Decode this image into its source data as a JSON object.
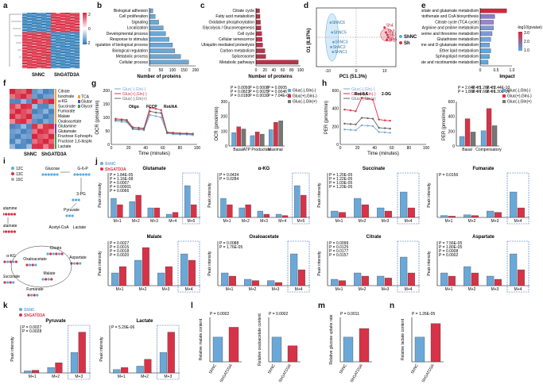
{
  "panels": [
    "a",
    "b",
    "c",
    "d",
    "e",
    "f",
    "g",
    "h",
    "i",
    "j",
    "k",
    "l",
    "m",
    "n"
  ],
  "colors": {
    "shnc": "#5aaee0",
    "shgatd3a": "#d63348",
    "gray": "#6e6e6e",
    "bar_blue": "#6aa8d8",
    "bar_red": "#b7334a"
  },
  "heatmap_a": {
    "groups": [
      "ShNC",
      "ShGATD3A"
    ],
    "scale_max": "2",
    "scale_mid": "0",
    "scale_min": "-2"
  },
  "chart_b": {
    "type": "bar",
    "xlabel": "Number of proteins",
    "ticks": [
      "0",
      "50",
      "100",
      "150",
      "200"
    ],
    "categories": [
      "Biological adhesion",
      "Cell proliferation",
      "Signaling",
      "Localization",
      "Developmental process",
      "Response to stimulus",
      "Regulation of biological process",
      "Biological regulation",
      "Metabolic process",
      "Cellular process"
    ],
    "values": [
      15,
      25,
      40,
      60,
      70,
      85,
      100,
      110,
      135,
      170
    ],
    "xlim": [
      0,
      200
    ]
  },
  "chart_c": {
    "type": "bar",
    "xlabel": "Number of proteins",
    "ticks": [
      "0",
      "20",
      "40",
      "60",
      "80",
      "100"
    ],
    "categories": [
      "Citrate cycle",
      "Fatty acid metabolism",
      "Oxidative phosphorylation",
      "Glycolysis / Gluconeogenesis",
      "Cell cycle",
      "Cellular senescence",
      "Ubiquitin mediated proteolysis",
      "Carbon metabolism",
      "Spliceosome",
      "Metabolic pathways"
    ],
    "values": [
      8,
      9,
      10,
      11,
      13,
      14,
      15,
      20,
      22,
      95
    ],
    "xlim": [
      0,
      100
    ]
  },
  "chart_d": {
    "type": "scatter",
    "xlabel": "PC1 (51.3%)",
    "ylabel": "O1 (8.97%)",
    "legend": [
      "ShNC",
      "Sh"
    ],
    "xticks": [
      "-10",
      "0",
      "10"
    ],
    "shnc_points": [
      [
        -9,
        3
      ],
      [
        -8.5,
        1
      ],
      [
        -8,
        -1
      ],
      [
        -8.8,
        -2
      ],
      [
        -8.2,
        -3
      ]
    ],
    "shnc_labels": [
      "ShNC6",
      "ShNC5",
      "ShNC3",
      "ShNC2",
      "ShNC1"
    ],
    "sh_points": [
      [
        10,
        2
      ],
      [
        10.5,
        1
      ],
      [
        11,
        0.5
      ],
      [
        10.8,
        -0.5
      ],
      [
        11.3,
        0
      ]
    ],
    "sh_labels": [
      "Sh4",
      "Sh3",
      "Sh2",
      "Sh1",
      "Sh5"
    ]
  },
  "chart_e": {
    "type": "bar",
    "xlabel": "Impact",
    "legend_title": "-log10(pvalue)",
    "legend_ticks": [
      "3.0",
      "2.0",
      "1.0"
    ],
    "xticks": [
      "0",
      "0.5",
      "1.0"
    ],
    "categories": [
      "Alanine, aspartate and glutamate metabolism",
      "Pantothenate and CoA biosynthesis",
      "Citrate cycle (TCA cycle)",
      "Arginine and proline metabolism",
      "Glycine, serine and threonine metabolism",
      "Glutathione metabolism",
      "D-Glutamine and D-glutamate metabolism",
      "Ether lipid metabolism",
      "Sphingolipid metabolism",
      "Nicotinate and nicotinamide metabolism"
    ],
    "values": [
      1.0,
      0.55,
      0.5,
      0.5,
      0.45,
      0.4,
      0.35,
      0.4,
      0.35,
      0.3
    ]
  },
  "heatmap_f": {
    "groups": [
      "ShNC",
      "ShGATD3A"
    ],
    "rows": [
      "Citrate",
      "Isocitrate",
      "a-KG",
      "Succinate",
      "Fumarate",
      "Malate",
      "Oxaloacetate",
      "Glutamine",
      "Glutamate",
      "Fructose 6-phosphate",
      "Fructose 1,6-bisphosphate",
      "Lactate"
    ],
    "legend": [
      "TCA",
      "Glutaminolysis",
      "Glycolysis"
    ]
  },
  "chart_g_line": {
    "type": "line",
    "ylabel": "OCR (pmol/min)",
    "xlabel": "Time (minutes)",
    "xticks": [
      "0",
      "20",
      "40",
      "60",
      "80",
      "100"
    ],
    "yticks": [
      "0",
      "50",
      "100",
      "150",
      "200"
    ],
    "annotations": [
      "Oligo",
      "FCCP",
      "Rot/AA"
    ],
    "legend": [
      "Gluc(-),Gln(-)",
      "Gluc(+),Gln(-)",
      "Gluc(-),Gln(+)"
    ],
    "x": [
      5,
      12,
      18,
      25,
      32,
      38,
      45,
      52,
      58,
      65,
      72,
      80,
      88,
      95
    ],
    "series": [
      {
        "name": "Gluc(-),Gln(-)",
        "values": [
          95,
          92,
          90,
          62,
          60,
          58,
          120,
          115,
          110,
          45,
          42,
          40,
          40,
          38
        ]
      },
      {
        "name": "Gluc(+),Gln(-)",
        "values": [
          105,
          102,
          100,
          70,
          68,
          66,
          150,
          145,
          140,
          50,
          48,
          46,
          45,
          44
        ]
      },
      {
        "name": "Gluc(-),Gln(+)",
        "values": [
          100,
          98,
          96,
          65,
          63,
          62,
          135,
          130,
          128,
          47,
          45,
          44,
          43,
          42
        ]
      }
    ]
  },
  "chart_g_bar": {
    "type": "bar",
    "ylabel": "OCR (pmol/min)",
    "categories": [
      "Basal",
      "ATP Production",
      "Maximal"
    ],
    "yticks": [
      "0",
      "100",
      "200",
      "300"
    ],
    "ylim": [
      0,
      300
    ],
    "series": [
      {
        "name": "Gluc(-),Gln(-)",
        "values": [
          90,
          70,
          110
        ]
      },
      {
        "name": "Gluc(+),Gln(-)",
        "values": [
          130,
          95,
          160
        ]
      },
      {
        "name": "Gluc(-),Gln(+)",
        "values": [
          115,
          80,
          170
        ]
      }
    ],
    "pvalues": [
      "P = 0.0050",
      "P = 0.0008",
      "P = 0.0005",
      "P = 0.0823",
      "P = 0.0025",
      "P = 0.0046",
      "P = 0.0180",
      "P = 0.0030",
      "P = 7.04E-05"
    ]
  },
  "chart_h_line": {
    "type": "line",
    "ylabel": "PER (pmol/min)",
    "xlabel": "Time (minutes)",
    "xticks": [
      "0",
      "20",
      "40",
      "60",
      "80",
      "100"
    ],
    "yticks": [
      "0",
      "200",
      "400",
      "600"
    ],
    "annotations": [
      "Rot/AA",
      "2-DG"
    ],
    "legend": [
      "Gluc(-),Gln(-)",
      "Gluc(+),Gln(-)",
      "Gluc(-),Gln(+)"
    ],
    "x": [
      5,
      12,
      18,
      25,
      32,
      38,
      45,
      52,
      58
    ],
    "series": [
      {
        "name": "Gluc(-),Gln(-)",
        "values": [
          180,
          175,
          170,
          230,
          225,
          220,
          150,
          145,
          140
        ]
      },
      {
        "name": "Gluc(+),Gln(-)",
        "values": [
          420,
          410,
          400,
          560,
          550,
          540,
          300,
          290,
          285
        ]
      },
      {
        "name": "Gluc(-),Gln(+)",
        "values": [
          250,
          245,
          240,
          320,
          315,
          310,
          200,
          195,
          190
        ]
      }
    ]
  },
  "chart_h_bar": {
    "type": "bar",
    "ylabel": "PER (pmol/min)",
    "categories": [
      "Basal",
      "Compensatory"
    ],
    "yticks": [
      "0",
      "200",
      "400",
      "600"
    ],
    "ylim": [
      0,
      700
    ],
    "series": [
      {
        "name": "Gluc(-),Gln(-)",
        "values": [
          150,
          240
        ]
      },
      {
        "name": "Gluc(+),Gln(-)",
        "values": [
          430,
          590
        ]
      },
      {
        "name": "Gluc(-),Gln(+)",
        "values": [
          220,
          320
        ]
      }
    ],
    "pvalues": [
      "P = 2.64E-05",
      "P = 1.26E-05",
      "P = 2.44E-10",
      "P = 1.86E-06",
      "P = 7.66E-06",
      "P = 1.30E-06"
    ]
  },
  "panel_i": {
    "labels": [
      "Glucose",
      "G-6-P",
      "3-PG",
      "Pyruvate",
      "Acetyl-CoA",
      "Lactate",
      "Citrate",
      "Oxaloacetate",
      "Aspartate",
      "Malate",
      "Fumarate",
      "Succinate",
      "α-KG",
      "Glutamine",
      "Glutamate"
    ],
    "isotope_legend": [
      "12C",
      "13C",
      "15C"
    ]
  },
  "panel_j": {
    "legend": [
      "ShNC",
      "ShGATD3A"
    ],
    "ylabel": "Peak intensity",
    "plots": [
      {
        "title": "Glutamate",
        "cats": [
          "M+1",
          "M+2",
          "M+3",
          "M+4",
          "M+5"
        ],
        "shnc": [
          3.0,
          2.5,
          1.5,
          0.5,
          5.0
        ],
        "sh": [
          2.0,
          3.5,
          1.5,
          0.8,
          2.0
        ],
        "pvalues": [
          "P = 1.84E-05",
          "P = 1.16E-08",
          "P = 0.0007",
          "P = 0.00001",
          "P = 0.0066"
        ]
      },
      {
        "title": "α-KG",
        "cats": [
          "M+1",
          "M+2",
          "M+3",
          "M+4",
          "M+5"
        ],
        "shnc": [
          3.0,
          1.5,
          1.0,
          0.5,
          5.0
        ],
        "sh": [
          2.0,
          2.0,
          0.5,
          0.3,
          3.5
        ],
        "pvalues": [
          "P = 0.0434",
          "P = 0.0284"
        ]
      },
      {
        "title": "Succinate",
        "cats": [
          "M+1",
          "M+2",
          "M+3",
          "M+4"
        ],
        "shnc": [
          1.0,
          3.0,
          1.5,
          4.0
        ],
        "sh": [
          0.8,
          2.0,
          1.0,
          1.5
        ],
        "pvalues": [
          "P = 1.20E-05",
          "P = 1.22E-05",
          "P = 1.03E-05",
          "P = 1.23E-05"
        ]
      },
      {
        "title": "Fumarate",
        "cats": [
          "M+1",
          "M+2",
          "M+3",
          "M+4"
        ],
        "shnc": [
          0.3,
          0.4,
          1.0,
          4.0
        ],
        "sh": [
          0.2,
          0.3,
          0.8,
          1.5
        ],
        "pvalues": [
          "P = 0.0156"
        ]
      },
      {
        "title": "Malate",
        "cats": [
          "M+1",
          "M+2",
          "M+3",
          "M+4"
        ],
        "shnc": [
          2.0,
          4.0,
          2.0,
          5.0
        ],
        "sh": [
          3.0,
          6.0,
          3.0,
          4.0
        ],
        "pvalues": [
          "P = 0.0027",
          "P = 0.0015",
          "P = 0.0018",
          "P = 0.0020"
        ]
      },
      {
        "title": "Oxaloacetate",
        "cats": [
          "M+1",
          "M+2",
          "M+3",
          "M+4"
        ],
        "shnc": [
          2.0,
          1.0,
          0.8,
          5.0
        ],
        "sh": [
          1.5,
          0.8,
          0.5,
          2.5
        ],
        "pvalues": [
          "P = 0.0088",
          "P = 1.76E-05"
        ]
      },
      {
        "title": "Citrate",
        "cats": [
          "M+1",
          "M+2",
          "M+3",
          "M+4"
        ],
        "shnc": [
          1.0,
          2.0,
          1.5,
          4.5
        ],
        "sh": [
          0.8,
          1.5,
          1.2,
          2.0
        ],
        "pvalues": [
          "P = 0.0099",
          "P = 0.0125",
          "P = 0.0177",
          "P = 0.0157"
        ]
      },
      {
        "title": "Aspartate",
        "cats": [
          "M+1",
          "M+2",
          "M+3",
          "M+4"
        ],
        "shnc": [
          2.0,
          3.0,
          1.5,
          5.0
        ],
        "sh": [
          1.5,
          2.0,
          1.0,
          2.5
        ],
        "pvalues": [
          "P = 7.56E-05",
          "P = 1.80E-05",
          "P = 0.0008",
          "P = 0.0002"
        ]
      }
    ]
  },
  "panel_k": {
    "legend": [
      "ShNC",
      "ShGATD3A"
    ],
    "ylabel": "Peak intensity",
    "plots": [
      {
        "title": "Pyruvate",
        "cats": [
          "M+1",
          "M+2",
          "M+3"
        ],
        "shnc": [
          0.3,
          0.8,
          3.0
        ],
        "sh": [
          0.4,
          1.5,
          6.0
        ],
        "pvalues": [
          "P = 0.0027",
          "P = 0.0028"
        ]
      },
      {
        "title": "Lactate",
        "cats": [
          "M+1",
          "M+2",
          "M+3"
        ],
        "shnc": [
          0.5,
          1.0,
          3.0
        ],
        "sh": [
          0.8,
          2.0,
          6.0
        ],
        "pvalues": [
          "P = 5.29E-06"
        ]
      }
    ]
  },
  "panel_l": {
    "plots": [
      {
        "ylabel": "Relative malate content",
        "cats": [
          "ShNC",
          "ShGATD3A"
        ],
        "values": [
          1.0,
          1.4
        ],
        "pvalue": "P = 0.0002"
      },
      {
        "ylabel": "Relative oxaloacetate content",
        "cats": [
          "ShNC",
          "ShGATD3A"
        ],
        "values": [
          1.0,
          0.65
        ],
        "pvalue": "P = 0.0002"
      }
    ]
  },
  "panel_m": {
    "ylabel": "Relative glucose uptake rate",
    "cats": [
      "ShNC",
      "ShGATD3A"
    ],
    "values": [
      1.0,
      1.35
    ],
    "pvalue": "P = 0.0011"
  },
  "panel_n": {
    "ylabel": "Relative lactate content",
    "cats": [
      "ShNC",
      "ShGATD3A"
    ],
    "values": [
      1.0,
      1.55
    ],
    "pvalue": "P = 1.26E-05"
  }
}
